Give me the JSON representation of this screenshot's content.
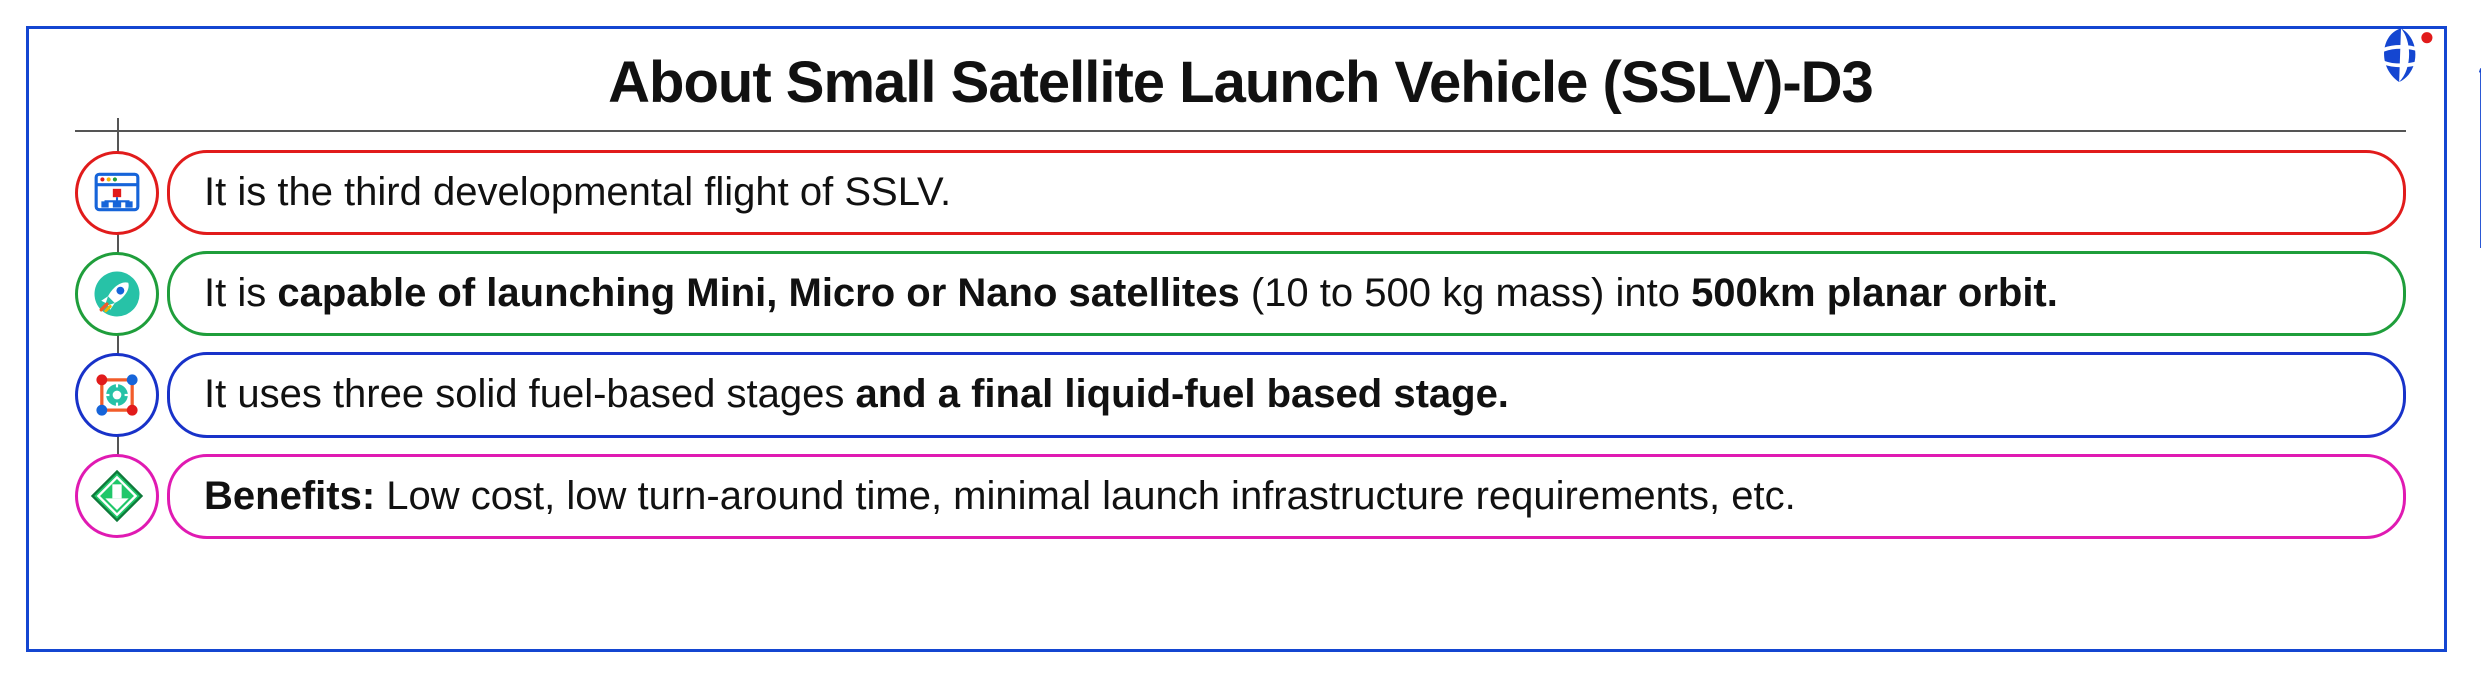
{
  "title": "About Small Satellite Launch Vehicle (SSLV)-D3",
  "title_fontsize": 58,
  "frame_border_color": "#1446d1",
  "background_color": "#ffffff",
  "timeline_line_color": "#555555",
  "items": [
    {
      "border_color": "#e11b1b",
      "icon": "browser-chart",
      "text_parts": [
        {
          "text": "It is the third developmental flight of SSLV.",
          "bold": false
        }
      ]
    },
    {
      "border_color": "#1f9e3b",
      "icon": "rocket",
      "text_parts": [
        {
          "text": "It is ",
          "bold": false
        },
        {
          "text": "capable of launching Mini, Micro or Nano satellites ",
          "bold": true
        },
        {
          "text": "(10 to 500 kg mass) into ",
          "bold": false
        },
        {
          "text": "500km planar orbit.",
          "bold": true
        }
      ]
    },
    {
      "border_color": "#1832c9",
      "icon": "gear-network",
      "text_parts": [
        {
          "text": "It uses three solid fuel-based stages ",
          "bold": false
        },
        {
          "text": "and a final liquid-fuel based stage.",
          "bold": true
        }
      ]
    },
    {
      "border_color": "#e01ab2",
      "icon": "download-diamond",
      "text_parts": [
        {
          "text": "Benefits: ",
          "bold": true
        },
        {
          "text": "Low cost, low turn-around time, minimal launch infrastructure requirements, etc.",
          "bold": false
        }
      ]
    }
  ],
  "logo": {
    "swoosh_color": "#1446d1",
    "dot_color": "#e11b1b"
  },
  "arrow_color": "#1446d1"
}
